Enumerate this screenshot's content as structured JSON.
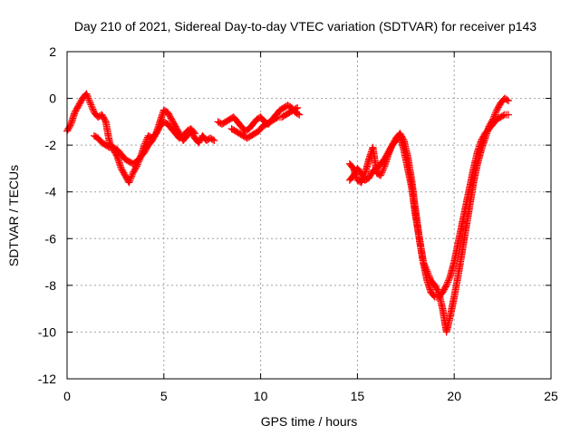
{
  "chart_data": {
    "type": "scatter",
    "title": "Day 210 of 2021, Sidereal Day-to-day VTEC variation (SDTVAR) for receiver p143",
    "xlabel": "GPS time / hours",
    "ylabel": "SDTVAR / TECUs",
    "xlim": [
      0,
      25
    ],
    "ylim": [
      -12,
      2
    ],
    "xticks": [
      0,
      5,
      10,
      15,
      20,
      25
    ],
    "yticks": [
      -12,
      -10,
      -8,
      -6,
      -4,
      -2,
      0,
      2
    ],
    "grid": true,
    "marker": "plus",
    "color": "#ff0000",
    "series": [
      {
        "x": [
          0.0,
          0.2,
          0.4,
          0.6,
          0.8,
          1.0,
          1.2,
          1.4,
          1.6,
          1.8,
          2.0,
          2.2,
          2.4,
          2.6,
          2.8,
          3.0,
          3.2,
          3.4,
          3.6,
          3.8,
          4.0,
          4.2,
          4.4,
          4.6,
          4.8,
          5.0,
          5.2,
          5.4,
          5.6,
          5.8,
          6.0,
          6.2,
          6.4,
          6.6,
          6.8,
          7.0,
          7.2,
          7.4,
          7.6
        ],
        "y": [
          -1.4,
          -1.1,
          -0.6,
          -0.3,
          0.0,
          0.2,
          -0.2,
          -0.6,
          -0.8,
          -0.7,
          -1.0,
          -1.9,
          -2.2,
          -2.5,
          -3.0,
          -3.3,
          -3.6,
          -3.2,
          -2.9,
          -2.5,
          -2.0,
          -1.6,
          -1.7,
          -1.5,
          -1.0,
          -0.5,
          -0.6,
          -0.9,
          -1.2,
          -1.5,
          -1.8,
          -1.6,
          -1.4,
          -1.7,
          -1.9,
          -1.6,
          -1.8,
          -1.7,
          -1.8
        ]
      },
      {
        "x": [
          1.4,
          1.6,
          1.8,
          2.0,
          2.2,
          2.4,
          2.6,
          2.8,
          3.0,
          3.2,
          3.4,
          3.6,
          3.8,
          4.0,
          4.2,
          4.4,
          4.6,
          4.8,
          5.0,
          5.2,
          5.4,
          5.6,
          5.8,
          6.0,
          6.2,
          6.4,
          6.6
        ],
        "y": [
          -1.6,
          -1.7,
          -1.9,
          -2.0,
          -2.1,
          -2.1,
          -2.2,
          -2.4,
          -2.6,
          -2.7,
          -2.8,
          -2.7,
          -2.5,
          -2.3,
          -2.0,
          -1.8,
          -1.5,
          -1.2,
          -1.0,
          -1.1,
          -1.3,
          -1.5,
          -1.7,
          -1.6,
          -1.4,
          -1.3,
          -1.5
        ]
      },
      {
        "x": [
          7.8,
          8.0,
          8.2,
          8.4,
          8.6,
          8.8,
          9.0,
          9.2,
          9.4,
          9.6,
          9.8,
          10.0,
          10.2,
          10.4,
          10.6,
          10.8,
          11.0,
          11.2,
          11.4,
          11.6,
          11.8,
          12.0
        ],
        "y": [
          -1.0,
          -1.1,
          -1.0,
          -0.9,
          -0.8,
          -1.0,
          -1.2,
          -1.4,
          -1.3,
          -1.1,
          -0.9,
          -0.8,
          -1.0,
          -1.1,
          -0.9,
          -0.7,
          -0.5,
          -0.4,
          -0.3,
          -0.4,
          -0.6,
          -0.7
        ]
      },
      {
        "x": [
          8.5,
          8.7,
          8.9,
          9.1,
          9.3,
          9.5,
          9.7,
          9.9,
          10.1,
          10.3,
          10.5,
          10.7,
          10.9,
          11.1,
          11.3,
          11.5,
          11.7,
          11.9
        ],
        "y": [
          -1.3,
          -1.4,
          -1.5,
          -1.6,
          -1.7,
          -1.6,
          -1.5,
          -1.4,
          -1.2,
          -1.1,
          -1.0,
          -0.9,
          -0.8,
          -0.8,
          -0.7,
          -0.6,
          -0.5,
          -0.4
        ]
      },
      {
        "x": [
          14.6,
          14.8,
          15.0,
          15.2,
          15.4,
          15.6,
          15.8,
          16.0,
          16.2,
          16.4,
          16.6,
          16.8,
          17.0,
          17.2,
          17.4,
          17.6,
          17.8,
          18.0,
          18.2,
          18.4,
          18.6,
          18.8,
          19.0,
          19.2,
          19.4,
          19.6,
          19.8,
          20.0,
          20.2,
          20.4,
          20.6,
          20.8,
          21.0,
          21.2,
          21.4,
          21.6,
          21.8,
          22.0,
          22.2,
          22.4,
          22.6,
          22.8
        ],
        "y": [
          -3.5,
          -3.3,
          -3.0,
          -3.2,
          -3.5,
          -3.4,
          -3.1,
          -3.0,
          -2.8,
          -2.6,
          -2.3,
          -2.0,
          -1.7,
          -1.5,
          -1.8,
          -2.5,
          -3.5,
          -4.8,
          -6.0,
          -7.0,
          -7.8,
          -8.3,
          -8.5,
          -8.5,
          -8.3,
          -8.0,
          -7.6,
          -7.0,
          -6.2,
          -5.4,
          -4.6,
          -3.8,
          -3.0,
          -2.3,
          -1.8,
          -1.5,
          -1.3,
          -1.1,
          -0.9,
          -0.8,
          -0.7,
          -0.7
        ]
      },
      {
        "x": [
          14.6,
          14.8,
          15.0,
          15.2,
          15.4,
          15.6,
          15.8,
          16.0,
          16.2,
          16.4,
          16.6,
          16.8,
          17.0,
          17.2,
          17.4,
          17.6,
          17.8,
          18.0,
          18.2,
          18.4,
          18.6,
          18.8,
          19.0,
          19.2,
          19.4,
          19.6,
          19.8,
          20.0,
          20.2,
          20.4,
          20.6,
          20.8,
          21.0,
          21.2,
          21.4,
          21.6,
          21.8,
          22.0,
          22.2,
          22.4,
          22.6,
          22.8
        ],
        "y": [
          -2.8,
          -3.0,
          -3.5,
          -3.6,
          -3.2,
          -2.6,
          -2.1,
          -3.2,
          -3.3,
          -2.9,
          -2.4,
          -2.0,
          -1.8,
          -1.6,
          -2.2,
          -3.0,
          -3.8,
          -5.0,
          -6.0,
          -7.0,
          -7.4,
          -7.8,
          -8.0,
          -8.3,
          -9.0,
          -10.0,
          -9.3,
          -8.5,
          -7.6,
          -6.6,
          -5.6,
          -4.6,
          -3.6,
          -2.8,
          -2.2,
          -1.7,
          -1.2,
          -0.9,
          -0.5,
          -0.2,
          0.0,
          -0.1
        ]
      }
    ]
  }
}
